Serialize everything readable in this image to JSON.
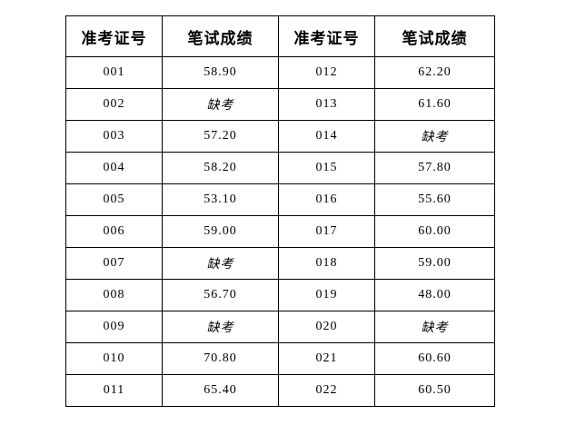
{
  "table": {
    "headers": [
      "准考证号",
      "笔试成绩",
      "准考证号",
      "笔试成绩"
    ],
    "absent_label": "缺考",
    "rows": [
      [
        "001",
        "58.90",
        "012",
        "62.20"
      ],
      [
        "002",
        "缺考",
        "013",
        "61.60"
      ],
      [
        "003",
        "57.20",
        "014",
        "缺考"
      ],
      [
        "004",
        "58.20",
        "015",
        "57.80"
      ],
      [
        "005",
        "53.10",
        "016",
        "55.60"
      ],
      [
        "006",
        "59.00",
        "017",
        "60.00"
      ],
      [
        "007",
        "缺考",
        "018",
        "59.00"
      ],
      [
        "008",
        "56.70",
        "019",
        "48.00"
      ],
      [
        "009",
        "缺考",
        "020",
        "缺考"
      ],
      [
        "010",
        "70.80",
        "021",
        "60.60"
      ],
      [
        "011",
        "65.40",
        "022",
        "60.50"
      ]
    ],
    "colors": {
      "border": "#000000",
      "text": "#000000",
      "background": "#ffffff"
    }
  }
}
